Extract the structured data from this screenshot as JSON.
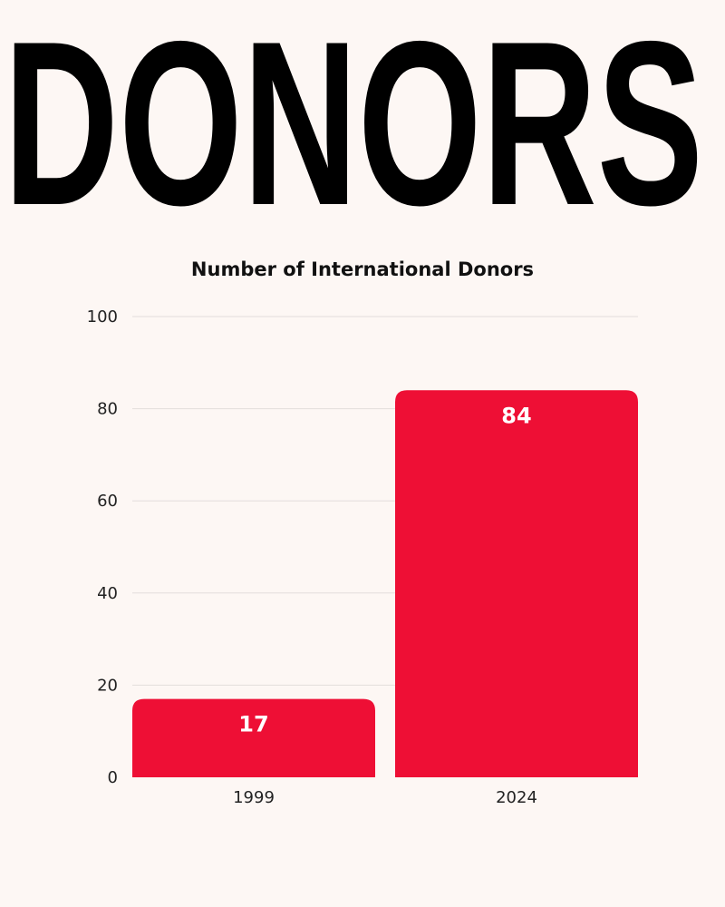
{
  "headline": "DONORS",
  "colors": {
    "background": "#fdf7f4",
    "bar": "#ee0f35",
    "gridline": "#e3dedb",
    "text": "#111111",
    "data_label": "#ffffff"
  },
  "chart_data": {
    "type": "bar",
    "title": "Number of International Donors",
    "xlabel": "",
    "ylabel": "",
    "categories": [
      "1999",
      "2024"
    ],
    "values": [
      17,
      84
    ],
    "data_labels": [
      "17",
      "84"
    ],
    "ylim": [
      0,
      100
    ],
    "yticks": [
      0,
      20,
      40,
      60,
      80,
      100
    ],
    "grid": true,
    "legend": "none"
  }
}
